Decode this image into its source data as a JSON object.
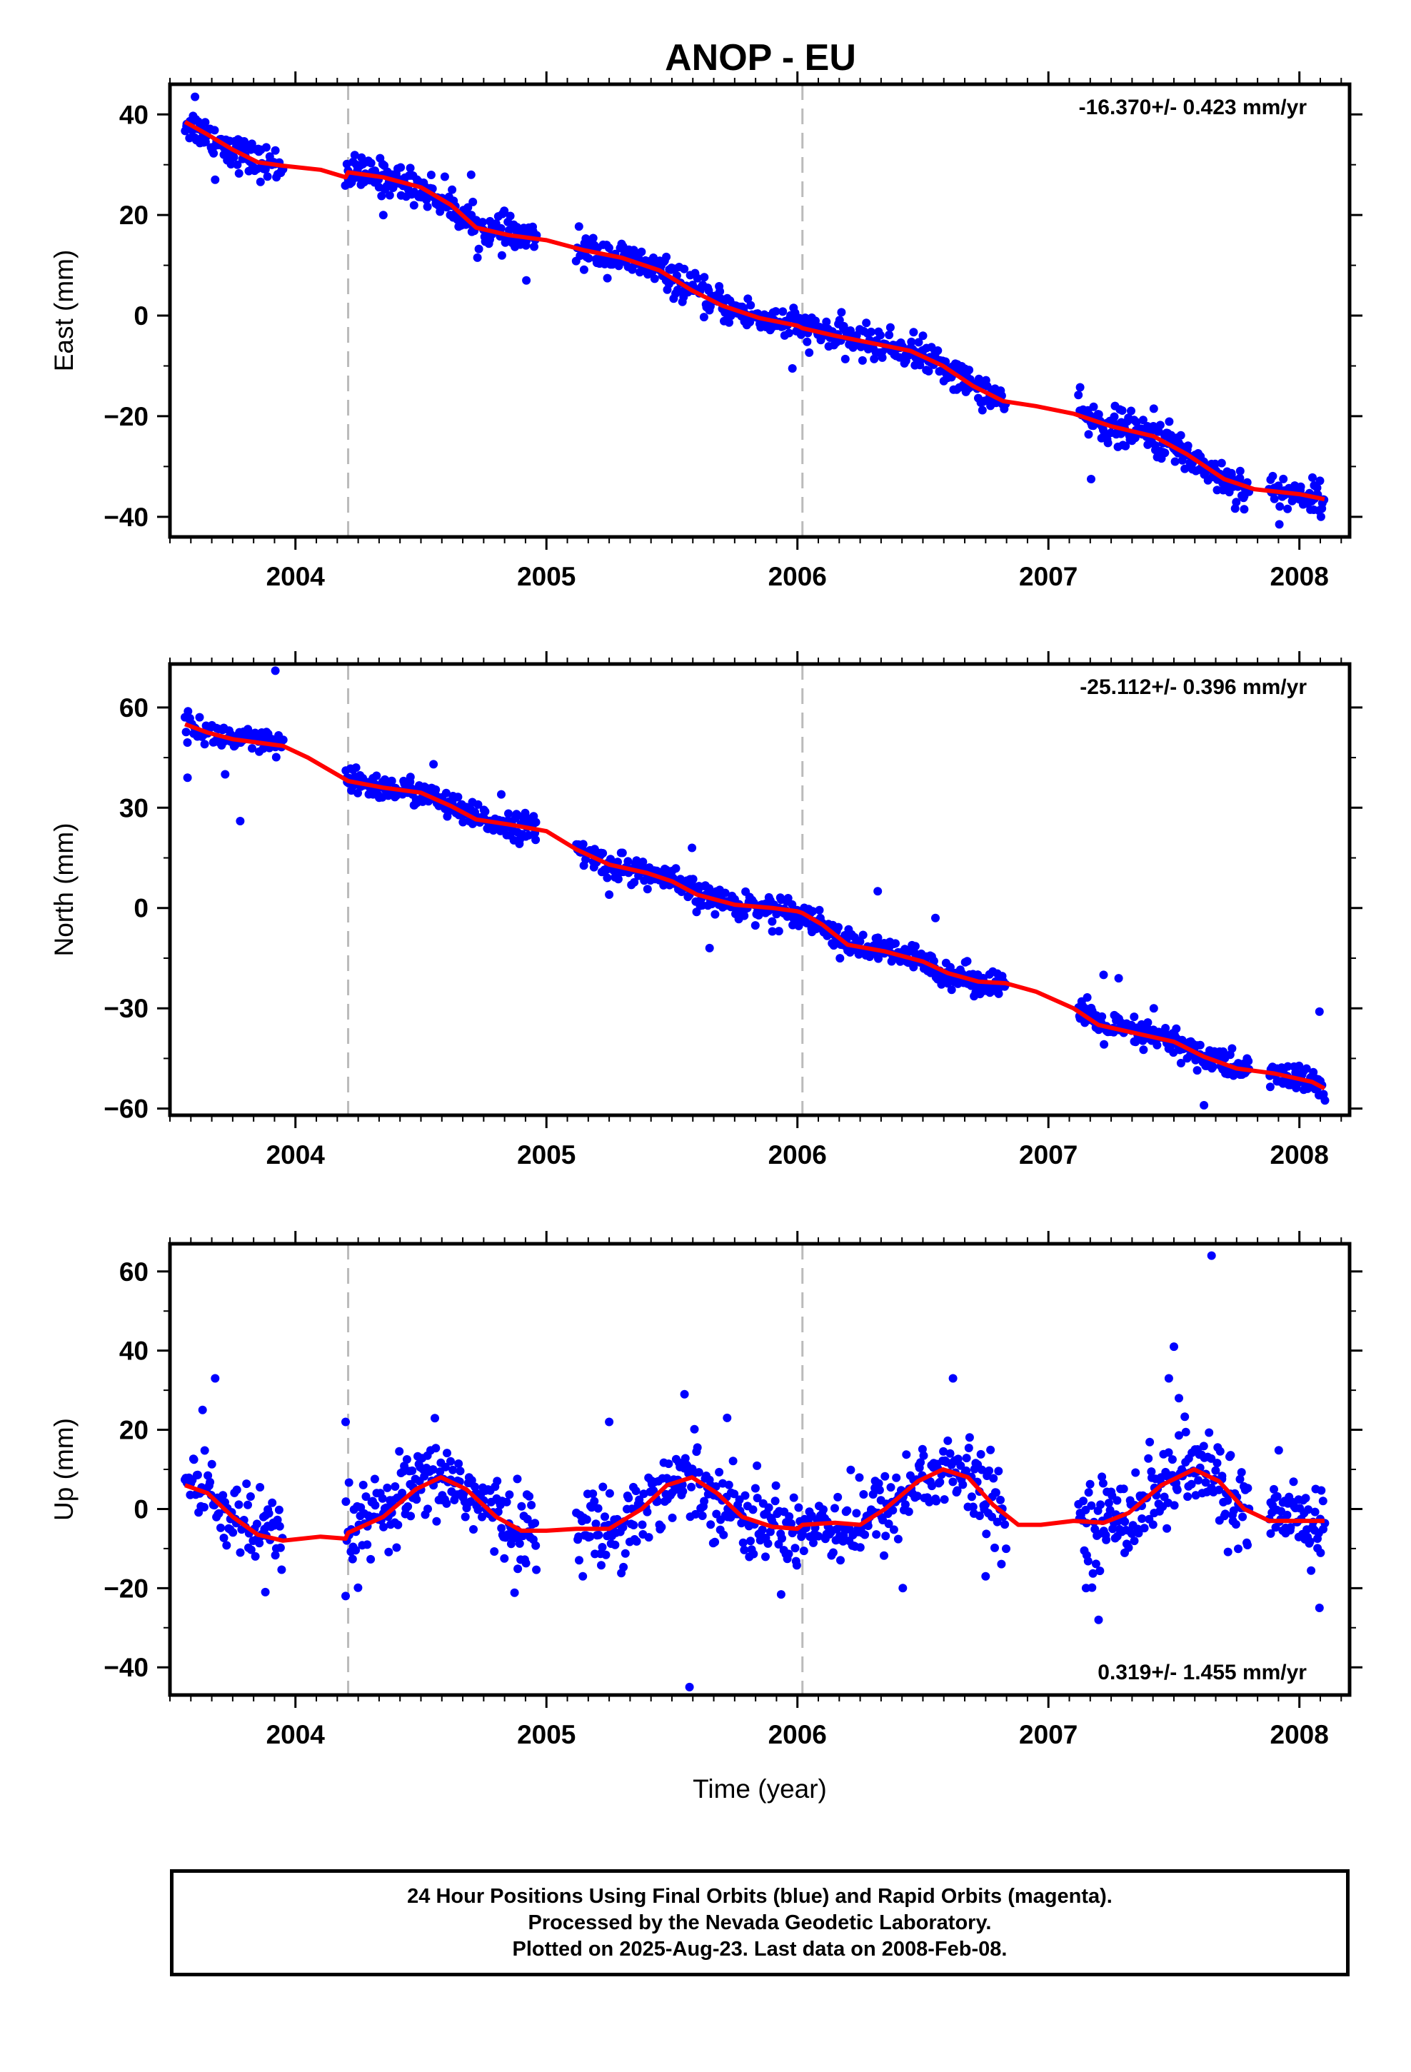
{
  "title": "ANOP - EU",
  "colors": {
    "final_orbits": "#0000ff",
    "rapid_orbits": "#ff00ff",
    "model": "#ff0000",
    "equipment_change": "#bbbbbb"
  },
  "caption": {
    "line1": "24 Hour Positions Using Final Orbits (blue) and Rapid Orbits (magenta).",
    "line2": "Processed by the Nevada Geodetic Laboratory.",
    "line3": "Plotted on 2025-Aug-23. Last data on 2008-Feb-08."
  },
  "chart_data": [
    {
      "type": "scatter",
      "title": "ANOP - EU",
      "xlabel": "",
      "ylabel": "East (mm)",
      "xlim": [
        2003.5,
        2008.2
      ],
      "ylim": [
        -44,
        46
      ],
      "xticks": [
        2004,
        2005,
        2006,
        2007,
        2008
      ],
      "yticks": [
        -40,
        -20,
        0,
        20,
        40
      ],
      "rate": "-16.370+/- 0.423 mm/yr",
      "rate_position": "top-right",
      "discontinuities": [
        2004.21,
        2006.02
      ],
      "data_gaps": [
        [
          2003.95,
          2004.2
        ],
        [
          2004.96,
          2005.12
        ],
        [
          2006.83,
          2007.12
        ],
        [
          2007.8,
          2007.88
        ]
      ],
      "series": [
        {
          "kind": "line",
          "points": [
            [
              2003.56,
              38.5
            ],
            [
              2003.65,
              36
            ],
            [
              2003.75,
              33
            ],
            [
              2003.85,
              30.5
            ],
            [
              2003.95,
              29.8
            ],
            [
              2004.1,
              29
            ],
            [
              2004.2,
              27.5
            ],
            [
              2004.21,
              28.5
            ],
            [
              2004.35,
              27.5
            ],
            [
              2004.5,
              25.5
            ],
            [
              2004.62,
              22
            ],
            [
              2004.72,
              17.5
            ],
            [
              2004.85,
              16
            ],
            [
              2005.0,
              15
            ],
            [
              2005.15,
              13
            ],
            [
              2005.3,
              11.5
            ],
            [
              2005.45,
              9
            ],
            [
              2005.58,
              5
            ],
            [
              2005.7,
              2
            ],
            [
              2005.85,
              -0.5
            ],
            [
              2006.0,
              -2
            ],
            [
              2006.02,
              -2.5
            ],
            [
              2006.15,
              -4
            ],
            [
              2006.3,
              -5.5
            ],
            [
              2006.45,
              -7
            ],
            [
              2006.58,
              -10
            ],
            [
              2006.7,
              -14
            ],
            [
              2006.82,
              -17
            ],
            [
              2006.95,
              -18
            ],
            [
              2007.1,
              -19.5
            ],
            [
              2007.25,
              -22
            ],
            [
              2007.42,
              -24
            ],
            [
              2007.55,
              -27.5
            ],
            [
              2007.7,
              -32.5
            ],
            [
              2007.82,
              -34.5
            ],
            [
              2008.0,
              -35.5
            ],
            [
              2008.1,
              -36.5
            ]
          ]
        },
        {
          "kind": "points",
          "segments": [
            {
              "start": 2003.56,
              "end": 2003.95,
              "n": 95,
              "rms": 1.7
            },
            {
              "start": 2004.2,
              "end": 2004.96,
              "n": 200,
              "rms": 1.7
            },
            {
              "start": 2005.12,
              "end": 2006.83,
              "n": 420,
              "rms": 1.6
            },
            {
              "start": 2007.12,
              "end": 2007.8,
              "n": 180,
              "rms": 1.8
            },
            {
              "start": 2007.88,
              "end": 2008.1,
              "n": 60,
              "rms": 1.6
            }
          ],
          "outliers": [
            [
              2003.6,
              43.5
            ],
            [
              2003.68,
              27
            ],
            [
              2004.35,
              20
            ],
            [
              2004.7,
              28
            ],
            [
              2004.92,
              7
            ],
            [
              2005.98,
              -10.5
            ],
            [
              2007.17,
              -32.5
            ],
            [
              2007.42,
              -18.5
            ],
            [
              2007.78,
              -38.5
            ],
            [
              2007.92,
              -41.5
            ],
            [
              2006.5,
              -4
            ]
          ]
        }
      ]
    },
    {
      "type": "scatter",
      "title": "",
      "xlabel": "",
      "ylabel": "North (mm)",
      "xlim": [
        2003.5,
        2008.2
      ],
      "ylim": [
        -62,
        73
      ],
      "xticks": [
        2004,
        2005,
        2006,
        2007,
        2008
      ],
      "yticks": [
        -60,
        -30,
        0,
        30,
        60
      ],
      "rate": "-25.112+/- 0.396 mm/yr",
      "rate_position": "top-right",
      "discontinuities": [
        2004.21,
        2006.02
      ],
      "data_gaps": [
        [
          2003.95,
          2004.2
        ],
        [
          2004.96,
          2005.12
        ],
        [
          2006.83,
          2007.12
        ],
        [
          2007.8,
          2007.88
        ]
      ],
      "series": [
        {
          "kind": "line",
          "points": [
            [
              2003.56,
              55
            ],
            [
              2003.65,
              52.5
            ],
            [
              2003.75,
              50.5
            ],
            [
              2003.85,
              49.5
            ],
            [
              2003.95,
              48.5
            ],
            [
              2004.05,
              45
            ],
            [
              2004.21,
              38
            ],
            [
              2004.35,
              36
            ],
            [
              2004.5,
              34.5
            ],
            [
              2004.62,
              30.5
            ],
            [
              2004.72,
              26.5
            ],
            [
              2004.85,
              25
            ],
            [
              2005.0,
              23
            ],
            [
              2005.12,
              17.5
            ],
            [
              2005.25,
              13
            ],
            [
              2005.4,
              10.5
            ],
            [
              2005.5,
              8
            ],
            [
              2005.6,
              4
            ],
            [
              2005.75,
              1
            ],
            [
              2005.9,
              0
            ],
            [
              2006.0,
              -1
            ],
            [
              2006.02,
              -1.5
            ],
            [
              2006.1,
              -5
            ],
            [
              2006.2,
              -11
            ],
            [
              2006.35,
              -13
            ],
            [
              2006.5,
              -16
            ],
            [
              2006.6,
              -19.5
            ],
            [
              2006.72,
              -22
            ],
            [
              2006.83,
              -22.5
            ],
            [
              2006.95,
              -25
            ],
            [
              2007.1,
              -30
            ],
            [
              2007.2,
              -35
            ],
            [
              2007.35,
              -37.5
            ],
            [
              2007.5,
              -40
            ],
            [
              2007.62,
              -44.5
            ],
            [
              2007.75,
              -48
            ],
            [
              2007.9,
              -49.5
            ],
            [
              2008.05,
              -52
            ],
            [
              2008.1,
              -54
            ]
          ]
        },
        {
          "kind": "points",
          "segments": [
            {
              "start": 2003.56,
              "end": 2003.95,
              "n": 95,
              "rms": 2.0
            },
            {
              "start": 2004.2,
              "end": 2004.96,
              "n": 200,
              "rms": 2.0
            },
            {
              "start": 2005.12,
              "end": 2006.83,
              "n": 420,
              "rms": 2.0
            },
            {
              "start": 2007.12,
              "end": 2007.8,
              "n": 180,
              "rms": 2.2
            },
            {
              "start": 2007.88,
              "end": 2008.1,
              "n": 60,
              "rms": 2.0
            }
          ],
          "outliers": [
            [
              2003.57,
              39
            ],
            [
              2003.72,
              40
            ],
            [
              2003.78,
              26
            ],
            [
              2003.92,
              71
            ],
            [
              2004.55,
              43
            ],
            [
              2004.82,
              34
            ],
            [
              2005.25,
              4
            ],
            [
              2005.58,
              18
            ],
            [
              2005.65,
              -12
            ],
            [
              2005.9,
              -7
            ],
            [
              2006.32,
              5
            ],
            [
              2006.55,
              -3
            ],
            [
              2007.22,
              -20
            ],
            [
              2007.28,
              -21
            ],
            [
              2007.42,
              -30
            ],
            [
              2007.62,
              -59
            ],
            [
              2008.08,
              -31
            ]
          ]
        }
      ]
    },
    {
      "type": "scatter",
      "title": "",
      "xlabel": "Time (year)",
      "ylabel": "Up (mm)",
      "xlim": [
        2003.5,
        2008.2
      ],
      "ylim": [
        -47,
        67
      ],
      "xticks": [
        2004,
        2005,
        2006,
        2007,
        2008
      ],
      "yticks": [
        -40,
        -20,
        0,
        20,
        40,
        60
      ],
      "rate": "0.319+/- 1.455 mm/yr",
      "rate_position": "bottom-right",
      "discontinuities": [
        2004.21,
        2006.02
      ],
      "data_gaps": [
        [
          2003.95,
          2004.2
        ],
        [
          2004.96,
          2005.12
        ],
        [
          2006.83,
          2007.12
        ],
        [
          2007.8,
          2007.88
        ]
      ],
      "series": [
        {
          "kind": "line",
          "points": [
            [
              2003.56,
              6
            ],
            [
              2003.65,
              4
            ],
            [
              2003.75,
              -2
            ],
            [
              2003.85,
              -6.5
            ],
            [
              2003.95,
              -8
            ],
            [
              2004.1,
              -7
            ],
            [
              2004.2,
              -7.5
            ],
            [
              2004.21,
              -6
            ],
            [
              2004.35,
              -2
            ],
            [
              2004.48,
              5
            ],
            [
              2004.58,
              8
            ],
            [
              2004.68,
              5
            ],
            [
              2004.8,
              -2
            ],
            [
              2004.9,
              -5.5
            ],
            [
              2005.0,
              -5.5
            ],
            [
              2005.12,
              -5
            ],
            [
              2005.25,
              -5
            ],
            [
              2005.38,
              0
            ],
            [
              2005.48,
              6
            ],
            [
              2005.58,
              8
            ],
            [
              2005.68,
              4
            ],
            [
              2005.78,
              -2
            ],
            [
              2005.9,
              -4.5
            ],
            [
              2006.0,
              -5
            ],
            [
              2006.02,
              -4
            ],
            [
              2006.15,
              -3.5
            ],
            [
              2006.25,
              -4
            ],
            [
              2006.35,
              0
            ],
            [
              2006.48,
              7
            ],
            [
              2006.58,
              10
            ],
            [
              2006.68,
              8
            ],
            [
              2006.78,
              1
            ],
            [
              2006.88,
              -4
            ],
            [
              2006.97,
              -4
            ],
            [
              2007.1,
              -3
            ],
            [
              2007.22,
              -3.5
            ],
            [
              2007.32,
              -1
            ],
            [
              2007.45,
              6
            ],
            [
              2007.58,
              10
            ],
            [
              2007.68,
              7
            ],
            [
              2007.78,
              0
            ],
            [
              2007.88,
              -3
            ],
            [
              2008.0,
              -3
            ],
            [
              2008.1,
              -3
            ]
          ]
        },
        {
          "kind": "points",
          "segments": [
            {
              "start": 2003.56,
              "end": 2003.95,
              "n": 95,
              "rms": 5.0
            },
            {
              "start": 2004.2,
              "end": 2004.96,
              "n": 200,
              "rms": 5.0
            },
            {
              "start": 2005.12,
              "end": 2006.83,
              "n": 420,
              "rms": 5.0
            },
            {
              "start": 2007.12,
              "end": 2007.8,
              "n": 180,
              "rms": 5.5
            },
            {
              "start": 2007.88,
              "end": 2008.1,
              "n": 60,
              "rms": 5.0
            }
          ],
          "outliers": [
            [
              2003.68,
              33
            ],
            [
              2003.63,
              25
            ],
            [
              2003.88,
              -21
            ],
            [
              2004.2,
              22
            ],
            [
              2004.2,
              -22
            ],
            [
              2005.25,
              22
            ],
            [
              2005.55,
              29
            ],
            [
              2005.57,
              -45
            ],
            [
              2005.72,
              23
            ],
            [
              2006.62,
              33
            ],
            [
              2006.75,
              -17
            ],
            [
              2007.15,
              -20
            ],
            [
              2007.2,
              -28
            ],
            [
              2007.48,
              33
            ],
            [
              2007.5,
              41
            ],
            [
              2007.52,
              28
            ],
            [
              2007.65,
              64
            ],
            [
              2008.08,
              -25
            ],
            [
              2006.42,
              -20
            ]
          ]
        }
      ]
    }
  ]
}
